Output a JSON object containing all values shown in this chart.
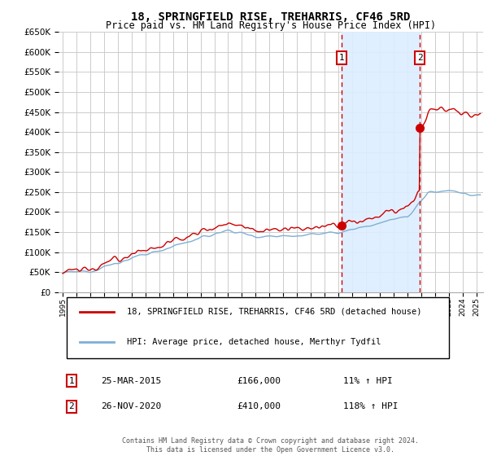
{
  "title": "18, SPRINGFIELD RISE, TREHARRIS, CF46 5RD",
  "subtitle": "Price paid vs. HM Land Registry's House Price Index (HPI)",
  "legend_line1": "18, SPRINGFIELD RISE, TREHARRIS, CF46 5RD (detached house)",
  "legend_line2": "HPI: Average price, detached house, Merthyr Tydfil",
  "footer": "Contains HM Land Registry data © Crown copyright and database right 2024.\nThis data is licensed under the Open Government Licence v3.0.",
  "sale1_date": "25-MAR-2015",
  "sale1_price": "£166,000",
  "sale1_hpi": "11% ↑ HPI",
  "sale1_year": 2015.23,
  "sale1_value": 166000,
  "sale2_date": "26-NOV-2020",
  "sale2_price": "£410,000",
  "sale2_hpi": "118% ↑ HPI",
  "sale2_year": 2020.9,
  "sale2_value": 410000,
  "ylim": [
    0,
    650000
  ],
  "yticks": [
    0,
    50000,
    100000,
    150000,
    200000,
    250000,
    300000,
    350000,
    400000,
    450000,
    500000,
    550000,
    600000,
    650000
  ],
  "ytick_labels": [
    "£0",
    "£50K",
    "£100K",
    "£150K",
    "£200K",
    "£250K",
    "£300K",
    "£350K",
    "£400K",
    "£450K",
    "£500K",
    "£550K",
    "£600K",
    "£650K"
  ],
  "hpi_color": "#7fafd4",
  "price_color": "#cc0000",
  "shade_color": "#ddeeff",
  "marker_box_color": "#cc0000",
  "background_chart": "#ffffff",
  "grid_color": "#cccccc",
  "xlim_left": 1994.7,
  "xlim_right": 2025.5
}
